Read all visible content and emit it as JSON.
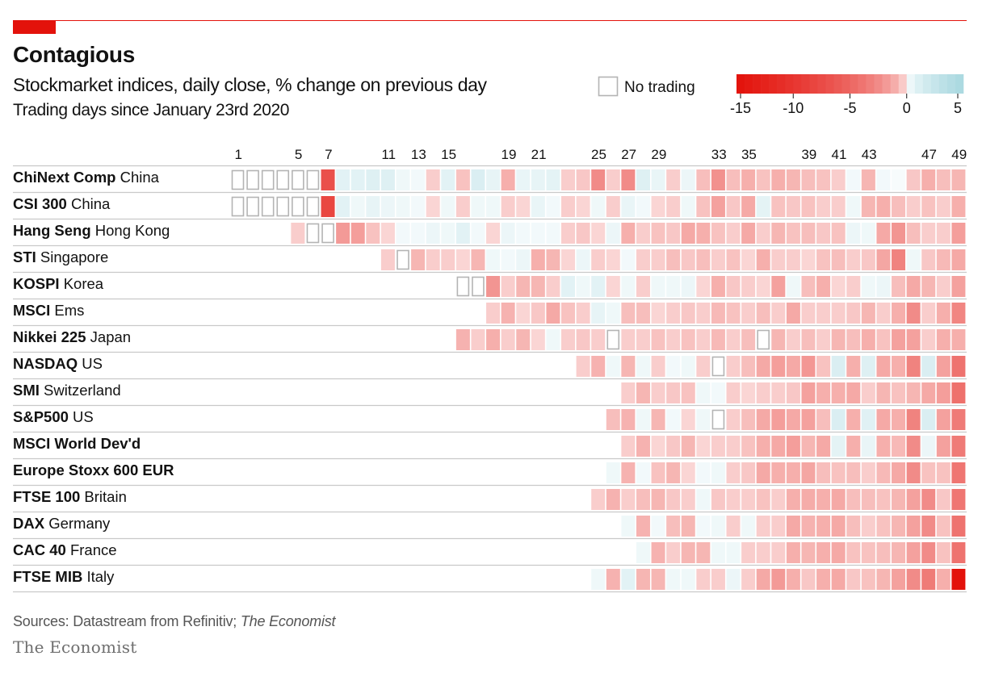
{
  "header": {
    "title": "Contagious",
    "subtitle": "Stockmarket indices, daily close, % change on previous day",
    "subtitle2": "Trading days since January 23rd 2020"
  },
  "footer": {
    "source_prefix": "Sources: Datastream from Refinitiv; ",
    "source_publication": "The Economist",
    "brand": "The Economist"
  },
  "colors": {
    "accent": "#e3120b",
    "no_trading_border": "#b4b4b4",
    "negative_max": "#e3120b",
    "positive_max": "#a8d8e0"
  },
  "chart_data": {
    "type": "heatmap",
    "title": "Contagious",
    "subtitle": "Stockmarket indices, daily close, % change on previous day",
    "xlabel": "Trading days since January 23rd 2020",
    "x": [
      1,
      2,
      3,
      4,
      5,
      6,
      7,
      8,
      9,
      10,
      11,
      12,
      13,
      14,
      15,
      16,
      17,
      18,
      19,
      20,
      21,
      22,
      23,
      24,
      25,
      26,
      27,
      28,
      29,
      30,
      31,
      32,
      33,
      34,
      35,
      36,
      37,
      38,
      39,
      40,
      41,
      42,
      43,
      44,
      45,
      46,
      47,
      48,
      49
    ],
    "x_ticks": [
      1,
      5,
      7,
      11,
      13,
      15,
      19,
      21,
      25,
      27,
      29,
      33,
      35,
      39,
      41,
      43,
      47,
      49
    ],
    "legend": {
      "no_trading_label": "No trading",
      "scale_ticks": [
        -15,
        -10,
        -5,
        0,
        5
      ],
      "scale_range": [
        -15,
        5
      ]
    },
    "rows": [
      {
        "name": "ChiNext Comp",
        "region": "China",
        "values": [
          null,
          null,
          null,
          null,
          null,
          null,
          -7.0,
          0.8,
          0.8,
          1.0,
          1.0,
          0.3,
          0.2,
          -0.3,
          0.8,
          -0.5,
          1.2,
          0.6,
          -1.0,
          0.5,
          0.6,
          0.7,
          -0.3,
          -0.4,
          -2.5,
          -0.3,
          -2.5,
          1.0,
          0.5,
          -0.3,
          0.4,
          -0.6,
          -2.2,
          -0.6,
          -1.0,
          -0.5,
          -1.0,
          -0.8,
          -0.6,
          -0.5,
          -0.3,
          0.2,
          -0.8,
          0.2,
          0.1,
          -0.4,
          -1.0,
          -0.6,
          -0.8
        ]
      },
      {
        "name": "CSI 300",
        "region": "China",
        "values": [
          null,
          null,
          null,
          null,
          null,
          null,
          -8.0,
          0.8,
          0.3,
          0.6,
          0.4,
          0.3,
          0.2,
          -0.2,
          0.3,
          -0.3,
          0.3,
          0.3,
          -0.3,
          -0.2,
          0.5,
          0.2,
          -0.3,
          -0.2,
          0.3,
          -0.3,
          0.5,
          0.2,
          -0.2,
          -0.3,
          0.3,
          -0.5,
          -1.5,
          -0.4,
          -1.2,
          0.7,
          -0.5,
          -0.4,
          -0.5,
          -0.3,
          -0.3,
          0.3,
          -0.8,
          -1.0,
          -0.6,
          -0.3,
          -0.5,
          -0.3,
          -1.0
        ]
      },
      {
        "name": "Hang Seng",
        "region": "Hong Kong",
        "values": [
          -0.3,
          null,
          null,
          -1.8,
          -1.6,
          -0.5,
          -0.2,
          0.2,
          0.2,
          0.4,
          0.3,
          0.8,
          0.2,
          -0.2,
          0.4,
          0.2,
          0.2,
          0.2,
          -0.3,
          -0.4,
          -0.2,
          0.4,
          -1.0,
          -0.3,
          -0.5,
          -0.4,
          -1.2,
          -1.0,
          -0.5,
          -0.3,
          -1.2,
          -0.3,
          -0.8,
          -0.5,
          -0.6,
          -0.4,
          -0.5,
          0.4,
          0.3,
          -1.2,
          -2.0,
          -0.6,
          -0.3,
          -0.3,
          -1.6
        ]
      },
      {
        "name": "STI",
        "region": "Singapore",
        "values": [
          -0.3,
          null,
          -0.8,
          -0.3,
          -0.3,
          -0.2,
          -0.8,
          0.3,
          0.2,
          0.4,
          -1.0,
          -0.8,
          -0.2,
          0.4,
          -0.3,
          -0.2,
          0.2,
          -0.3,
          -0.3,
          -0.6,
          -0.4,
          -0.6,
          -0.3,
          -0.5,
          -0.2,
          -1.0,
          -0.3,
          -0.3,
          -0.2,
          -0.5,
          -0.6,
          -0.3,
          -0.4,
          -1.3,
          -3.0,
          0.3,
          -0.4,
          -0.7,
          -1.2
        ]
      },
      {
        "name": "KOSPI",
        "region": "Korea",
        "values": [
          null,
          null,
          -2.0,
          -0.3,
          -0.8,
          -0.8,
          -0.3,
          0.8,
          0.3,
          0.8,
          -0.2,
          0.3,
          -0.3,
          0.3,
          0.3,
          0.4,
          -0.2,
          -1.0,
          -0.4,
          -0.3,
          -0.2,
          -1.5,
          0.3,
          -0.6,
          -1.0,
          -0.2,
          -0.3,
          0.3,
          0.4,
          -0.6,
          -1.2,
          -0.8,
          -0.3,
          -1.5
        ]
      },
      {
        "name": "MSCI",
        "region": "Ems",
        "values": [
          -0.3,
          -0.9,
          -0.2,
          -0.4,
          -1.2,
          -0.5,
          -0.3,
          0.6,
          0.3,
          -0.6,
          -0.6,
          -0.2,
          -0.3,
          -0.4,
          -0.3,
          -0.7,
          -0.5,
          -0.3,
          -0.6,
          -0.3,
          -1.2,
          -0.3,
          -0.3,
          -0.3,
          -0.4,
          -0.8,
          -0.3,
          -1.0,
          -2.5,
          -0.3,
          -1.0,
          -2.8
        ]
      },
      {
        "name": "Nikkei 225",
        "region": "Japan",
        "values": [
          -0.9,
          -0.3,
          -1.0,
          -0.3,
          -0.8,
          -0.2,
          0.3,
          -0.3,
          -0.4,
          -0.3,
          null,
          -0.3,
          -0.3,
          -0.5,
          -0.3,
          -0.5,
          -0.3,
          -0.7,
          -0.3,
          -0.6,
          null,
          -0.8,
          -0.3,
          -0.6,
          -0.3,
          -0.8,
          -0.6,
          -1.0,
          -0.5,
          -1.5,
          -1.5,
          -0.3,
          -1.0,
          -1.0
        ]
      },
      {
        "name": "NASDAQ",
        "region": "US",
        "values": [
          -0.3,
          -0.9,
          0.3,
          -0.8,
          0.3,
          -0.3,
          0.2,
          0.3,
          -0.3,
          null,
          -0.3,
          -0.6,
          -1.2,
          -1.6,
          -1.2,
          -1.9,
          -0.5,
          1.2,
          -1.0,
          1.0,
          -1.2,
          -1.0,
          -3.0,
          1.2,
          -1.5,
          -4.0
        ]
      },
      {
        "name": "SMI",
        "region": "Switzerland",
        "values": [
          -0.3,
          -0.8,
          -0.3,
          -0.4,
          -0.5,
          0.3,
          0.2,
          -0.3,
          -0.2,
          -0.3,
          -0.3,
          -0.4,
          -1.5,
          -1.0,
          -1.0,
          -1.2,
          -0.3,
          -0.8,
          -0.5,
          -0.8,
          -1.2,
          -1.6,
          -4.2
        ]
      },
      {
        "name": "S&P500",
        "region": "US",
        "values": [
          -0.6,
          -0.9,
          0.3,
          -0.8,
          0.2,
          -0.2,
          0.3,
          null,
          -0.3,
          -0.6,
          -1.2,
          -1.6,
          -1.2,
          -1.5,
          -0.6,
          1.2,
          -1.0,
          0.9,
          -1.2,
          -1.0,
          -3.0,
          1.2,
          -1.5,
          -3.5
        ]
      },
      {
        "name": "MSCI World Dev'd",
        "region": "",
        "values": [
          -0.3,
          -0.9,
          -0.2,
          -0.4,
          -0.8,
          -0.2,
          -0.3,
          -0.3,
          -0.5,
          -1.0,
          -1.2,
          -1.6,
          -0.8,
          -1.2,
          0.7,
          -1.0,
          0.5,
          -1.0,
          -0.7,
          -2.5,
          0.4,
          -1.5,
          -3.5
        ]
      },
      {
        "name": "Europe Stoxx 600 EUR",
        "region": "",
        "values": [
          0.3,
          -0.9,
          0.2,
          -0.5,
          -0.8,
          -0.2,
          0.2,
          0.3,
          -0.3,
          -0.4,
          -1.2,
          -1.0,
          -1.0,
          -1.3,
          -0.6,
          -0.5,
          -0.6,
          -0.3,
          -0.7,
          -1.2,
          -2.5,
          -0.5,
          -0.5,
          -3.8
        ]
      },
      {
        "name": "FTSE 100",
        "region": "Britain",
        "values": [
          -0.3,
          -0.9,
          -0.3,
          -0.6,
          -0.8,
          -0.4,
          -0.3,
          0.3,
          -0.4,
          -0.3,
          -0.3,
          -0.5,
          -0.3,
          -1.0,
          -1.1,
          -1.0,
          -1.2,
          -0.6,
          -0.6,
          -0.5,
          -0.8,
          -1.5,
          -2.5,
          -0.4,
          -3.8
        ]
      },
      {
        "name": "DAX",
        "region": "Germany",
        "values": [
          0.3,
          -0.9,
          0.2,
          -0.6,
          -0.8,
          0.2,
          0.3,
          -0.3,
          0.3,
          -0.3,
          -0.3,
          -1.2,
          -0.9,
          -1.0,
          -1.2,
          -0.6,
          -0.3,
          -0.5,
          -0.8,
          -1.5,
          -2.5,
          -0.5,
          -4.0
        ]
      },
      {
        "name": "CAC 40",
        "region": "France",
        "values": [
          0.3,
          -0.9,
          -0.3,
          -0.8,
          -0.8,
          0.3,
          0.3,
          -0.3,
          -0.3,
          -0.3,
          -1.0,
          -0.8,
          -1.0,
          -1.2,
          -0.5,
          -0.5,
          -0.6,
          -0.8,
          -1.5,
          -2.5,
          -0.5,
          -4.0
        ]
      },
      {
        "name": "FTSE MIB",
        "region": "Italy",
        "values": [
          0.3,
          -0.9,
          0.8,
          -0.8,
          -0.8,
          0.3,
          0.3,
          -0.3,
          -0.3,
          0.4,
          -0.3,
          -1.2,
          -1.8,
          -1.0,
          -0.4,
          -1.0,
          -1.2,
          -0.4,
          -0.5,
          -0.8,
          -1.5,
          -2.5,
          -3.5,
          -1.0,
          -15.0
        ]
      }
    ]
  }
}
